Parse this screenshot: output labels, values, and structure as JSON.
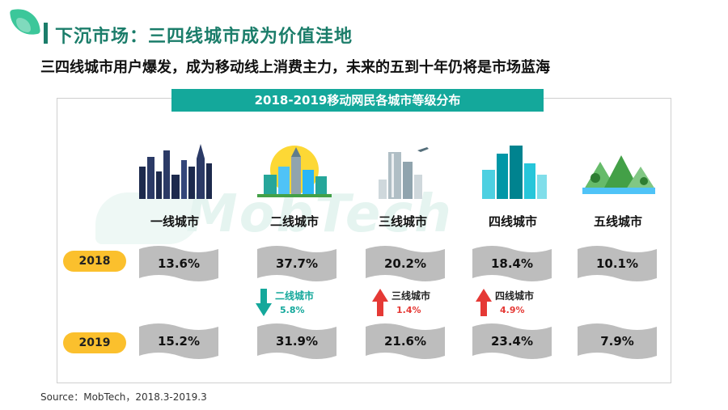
{
  "header": {
    "title": "下沉市场：三四线城市成为价值洼地",
    "subtitle": "三四线城市用户爆发，成为移动线上消费主力，未来的五到十年仍将是市场蓝海"
  },
  "chart_title": "2018-2019移动网民各城市等级分布",
  "watermark": "MobTech",
  "source": "Source：MobTech，2018.3-2019.3",
  "colors": {
    "accent": "#14a89b",
    "title": "#1b7d6a",
    "year_tag": "#fbc02d",
    "flag": "#bdbdbd",
    "down": "#14a89b",
    "up": "#e53935"
  },
  "chart_data": {
    "type": "table",
    "categories": [
      "一线城市",
      "二线城市",
      "三线城市",
      "四线城市",
      "五线城市"
    ],
    "series": [
      {
        "name": "2018",
        "values": [
          "13.6%",
          "37.7%",
          "20.2%",
          "18.4%",
          "10.1%"
        ]
      },
      {
        "name": "2019",
        "values": [
          "15.2%",
          "31.9%",
          "21.6%",
          "23.4%",
          "7.9%"
        ]
      }
    ],
    "changes": [
      {
        "label": "二线城市",
        "value": "5.8%",
        "direction": "down"
      },
      {
        "label": "三线城市",
        "value": "1.4%",
        "direction": "up"
      },
      {
        "label": "四线城市",
        "value": "4.9%",
        "direction": "up"
      }
    ]
  }
}
